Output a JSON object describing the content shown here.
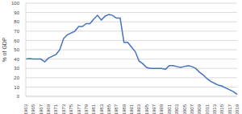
{
  "chart_data": {
    "type": "line",
    "y_label": "% of GDP",
    "categories": [
      "1963",
      null,
      "1965",
      null,
      "1967",
      null,
      "1969",
      null,
      "1971",
      null,
      "1973",
      null,
      "1975",
      null,
      "1977",
      null,
      "1979",
      null,
      "1981",
      null,
      "1983",
      null,
      "1985",
      null,
      "1987",
      null,
      "1989",
      null,
      "1991",
      null,
      "1993",
      null,
      "1995",
      null,
      "1997",
      null,
      "1999",
      null,
      "2001",
      null,
      "2003",
      null,
      "2005",
      null,
      "2007",
      null,
      "2009",
      null,
      "2011",
      null,
      "2013",
      null,
      "2015",
      null,
      "2017",
      null,
      "2019"
    ],
    "values": [
      40,
      40.5,
      40,
      40,
      40,
      37,
      41,
      43,
      45,
      50,
      62,
      66,
      68,
      70,
      75,
      75,
      78,
      78,
      83,
      87,
      82,
      86,
      88,
      87,
      84,
      84,
      58,
      58,
      53,
      48,
      38,
      35,
      31,
      30,
      30,
      30,
      30,
      29,
      33,
      33,
      32,
      31,
      32,
      33,
      32,
      30,
      26,
      23,
      19,
      16,
      14,
      12,
      11,
      9,
      7,
      5,
      2
    ],
    "color": "#4472c4",
    "ylim": [
      0,
      100
    ],
    "yticks": [
      0,
      10,
      20,
      30,
      40,
      50,
      60,
      70,
      80,
      90,
      100
    ],
    "grid": true
  }
}
